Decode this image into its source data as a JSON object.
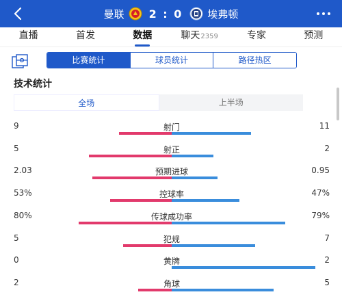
{
  "header": {
    "home_team": "曼联",
    "away_team": "埃弗顿",
    "score": "2 : 0",
    "back_icon": "back-arrow-icon",
    "more_icon": "more-dots-icon",
    "colors": {
      "bar": "#1f59c9"
    }
  },
  "tabs": [
    {
      "label": "直播",
      "count": ""
    },
    {
      "label": "首发",
      "count": ""
    },
    {
      "label": "数据",
      "count": "",
      "active": true
    },
    {
      "label": "聊天",
      "count": "2359"
    },
    {
      "label": "专家",
      "count": ""
    },
    {
      "label": "预测",
      "count": ""
    }
  ],
  "subtabs": [
    {
      "label": "比赛统计",
      "active": true
    },
    {
      "label": "球员统计"
    },
    {
      "label": "路径热区"
    }
  ],
  "section_title": "技术统计",
  "period_tabs": [
    {
      "label": "全场",
      "active": true
    },
    {
      "label": "上半场"
    }
  ],
  "colors": {
    "home": "#e23a6c",
    "away": "#3a8ddc"
  },
  "stats": [
    {
      "label": "射门",
      "home": "9",
      "away": "11",
      "home_share": 0.45,
      "away_share": 0.55
    },
    {
      "label": "射正",
      "home": "5",
      "away": "2",
      "home_share": 0.71,
      "away_share": 0.29
    },
    {
      "label": "预期进球",
      "home": "2.03",
      "away": "0.95",
      "home_share": 0.68,
      "away_share": 0.32
    },
    {
      "label": "控球率",
      "home": "53%",
      "away": "47%",
      "home_share": 0.53,
      "away_share": 0.47
    },
    {
      "label": "传球成功率",
      "home": "80%",
      "away": "79%",
      "home_share": 0.8,
      "away_share": 0.79
    },
    {
      "label": "犯规",
      "home": "5",
      "away": "7",
      "home_share": 0.42,
      "away_share": 0.58
    },
    {
      "label": "黄牌",
      "home": "0",
      "away": "2",
      "home_share": 0.0,
      "away_share": 1.0
    },
    {
      "label": "角球",
      "home": "2",
      "away": "5",
      "home_share": 0.29,
      "away_share": 0.71
    }
  ]
}
